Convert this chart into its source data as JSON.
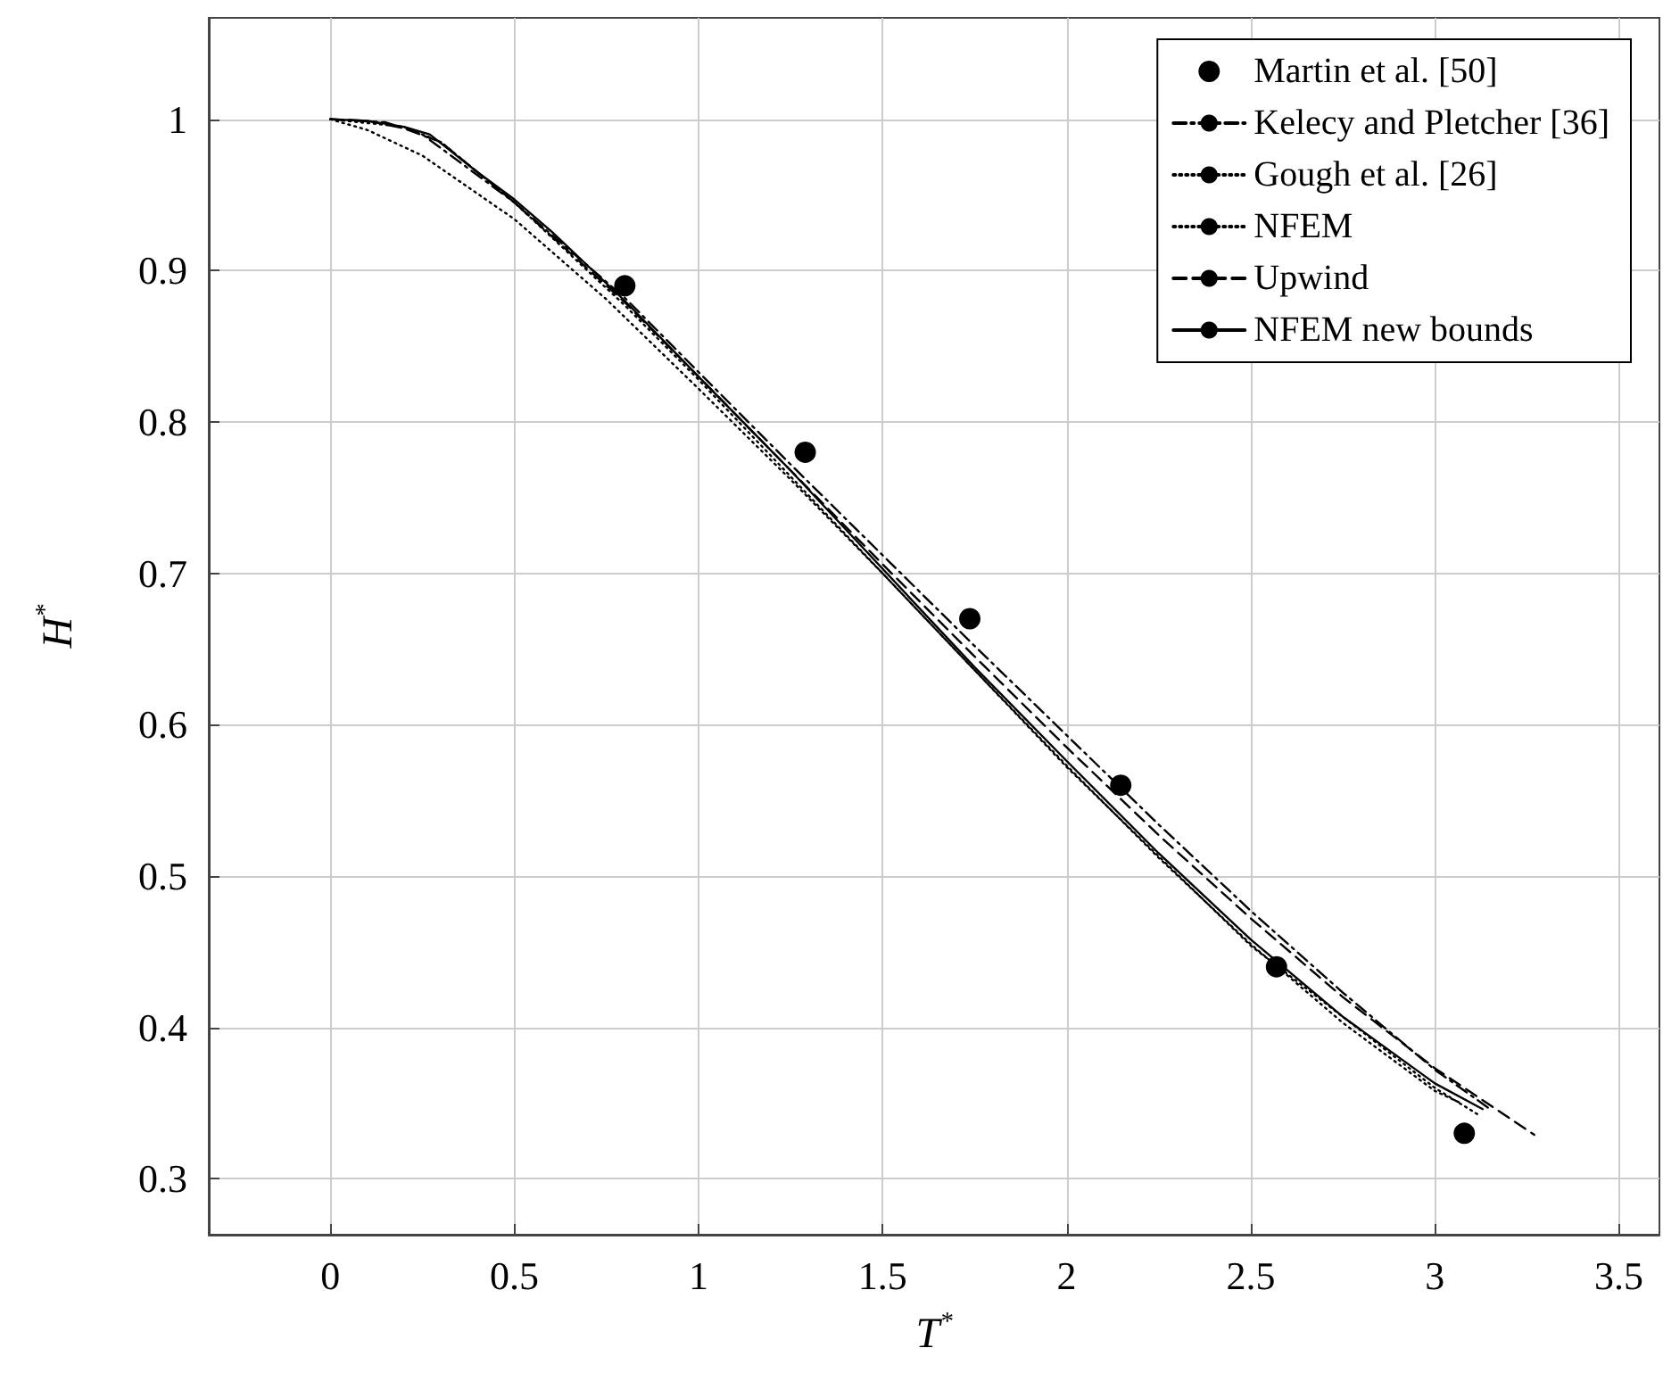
{
  "chart_data": {
    "type": "line",
    "xlabel": "T$^{*}$",
    "ylabel": "H$^{*}$",
    "xlim": [
      -0.33,
      3.61
    ],
    "ylim": [
      0.263,
      1.067
    ],
    "xticks": [
      0,
      0.5,
      1,
      1.5,
      2,
      2.5,
      3,
      3.5
    ],
    "yticks": [
      0.3,
      0.4,
      0.5,
      0.6,
      0.7,
      0.8,
      0.9,
      1
    ],
    "grid": true,
    "legend": "top right",
    "series": [
      {
        "name": "Martin et al. [50]",
        "type": "scatter",
        "marker": "circle",
        "color": "#000000",
        "x": [
          0.8,
          1.29,
          1.737,
          2.147,
          2.57,
          3.08
        ],
        "values": [
          0.89,
          0.78,
          0.67,
          0.56,
          0.44,
          0.33
        ]
      },
      {
        "name": "Kelecy and Pletcher [36]",
        "line_style": "dashdot",
        "marker": "none",
        "color": "#000000",
        "x": [
          0,
          0.15,
          0.25,
          0.5,
          0.8,
          1,
          1.25,
          1.5,
          1.75,
          2,
          2.25,
          2.5,
          2.75,
          3,
          3.15
        ],
        "values": [
          1,
          0.998,
          0.99,
          0.945,
          0.882,
          0.833,
          0.772,
          0.712,
          0.652,
          0.593,
          0.534,
          0.477,
          0.423,
          0.372,
          0.346
        ]
      },
      {
        "name": "Gough et al. [26]",
        "line_style": "dotted",
        "marker": "none",
        "color": "#000000",
        "x": [
          0,
          0.1,
          0.25,
          0.5,
          0.75,
          1,
          1.25,
          1.5,
          1.75,
          2,
          2.25,
          2.5,
          2.75,
          3,
          3.07
        ],
        "values": [
          1,
          0.993,
          0.976,
          0.934,
          0.881,
          0.822,
          0.762,
          0.7,
          0.636,
          0.573,
          0.512,
          0.455,
          0.403,
          0.358,
          0.35
        ]
      },
      {
        "name": "NFEM",
        "line_style": "dotted",
        "marker": "none",
        "color": "#000000",
        "x": [
          0,
          0.2,
          0.3,
          0.5,
          0.8,
          1,
          1.5,
          2,
          2.5,
          3,
          3.12
        ],
        "values": [
          1,
          0.995,
          0.985,
          0.945,
          0.877,
          0.828,
          0.7,
          0.572,
          0.454,
          0.36,
          0.342
        ]
      },
      {
        "name": "Upwind",
        "line_style": "dashed",
        "marker": "none",
        "color": "#000000",
        "x": [
          0,
          0.1,
          0.2,
          0.3,
          0.5,
          0.8,
          1,
          1.25,
          1.5,
          1.75,
          2,
          2.25,
          2.5,
          2.75,
          3,
          3.27
        ],
        "values": [
          1,
          0.999,
          0.994,
          0.985,
          0.945,
          0.879,
          0.83,
          0.768,
          0.706,
          0.645,
          0.585,
          0.527,
          0.472,
          0.42,
          0.373,
          0.329
        ]
      },
      {
        "name": "NFEM new bounds",
        "line_style": "solid",
        "marker": "none",
        "color": "#000000",
        "x": [
          0,
          0.1,
          0.2,
          0.27,
          0.4,
          0.5,
          0.6,
          0.8,
          1,
          1.25,
          1.5,
          1.75,
          2,
          2.25,
          2.5,
          2.75,
          3,
          3.13
        ],
        "values": [
          1,
          0.999,
          0.995,
          0.99,
          0.965,
          0.947,
          0.926,
          0.88,
          0.83,
          0.768,
          0.703,
          0.638,
          0.576,
          0.515,
          0.458,
          0.407,
          0.363,
          0.346
        ]
      }
    ]
  }
}
